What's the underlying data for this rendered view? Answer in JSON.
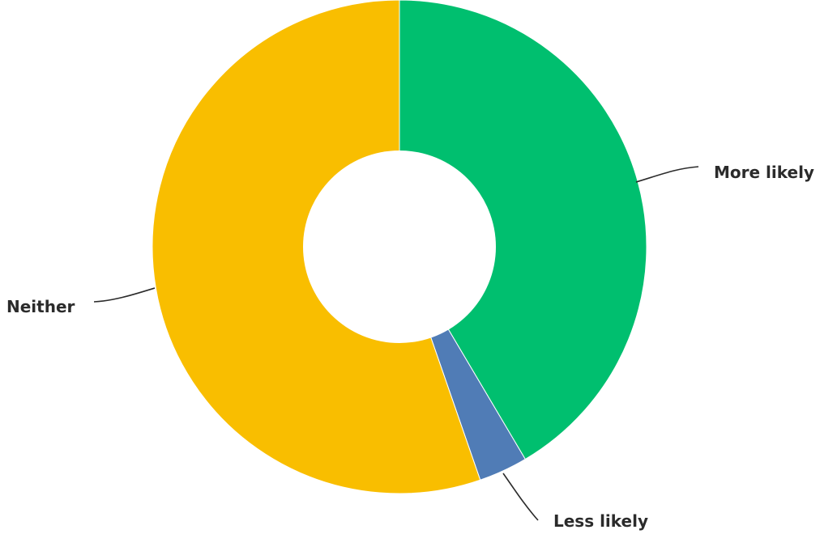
{
  "chart_data": {
    "type": "pie",
    "donut": true,
    "title": "",
    "slices": [
      {
        "label": "More likely",
        "value": 41.5,
        "color": "#00bf6f"
      },
      {
        "label": "Less likely",
        "value": 3.2,
        "color": "#507cb6"
      },
      {
        "label": "Neither",
        "value": 55.3,
        "color": "#f9be00"
      }
    ],
    "legend": "none",
    "labels": "outside-with-leader-lines"
  }
}
